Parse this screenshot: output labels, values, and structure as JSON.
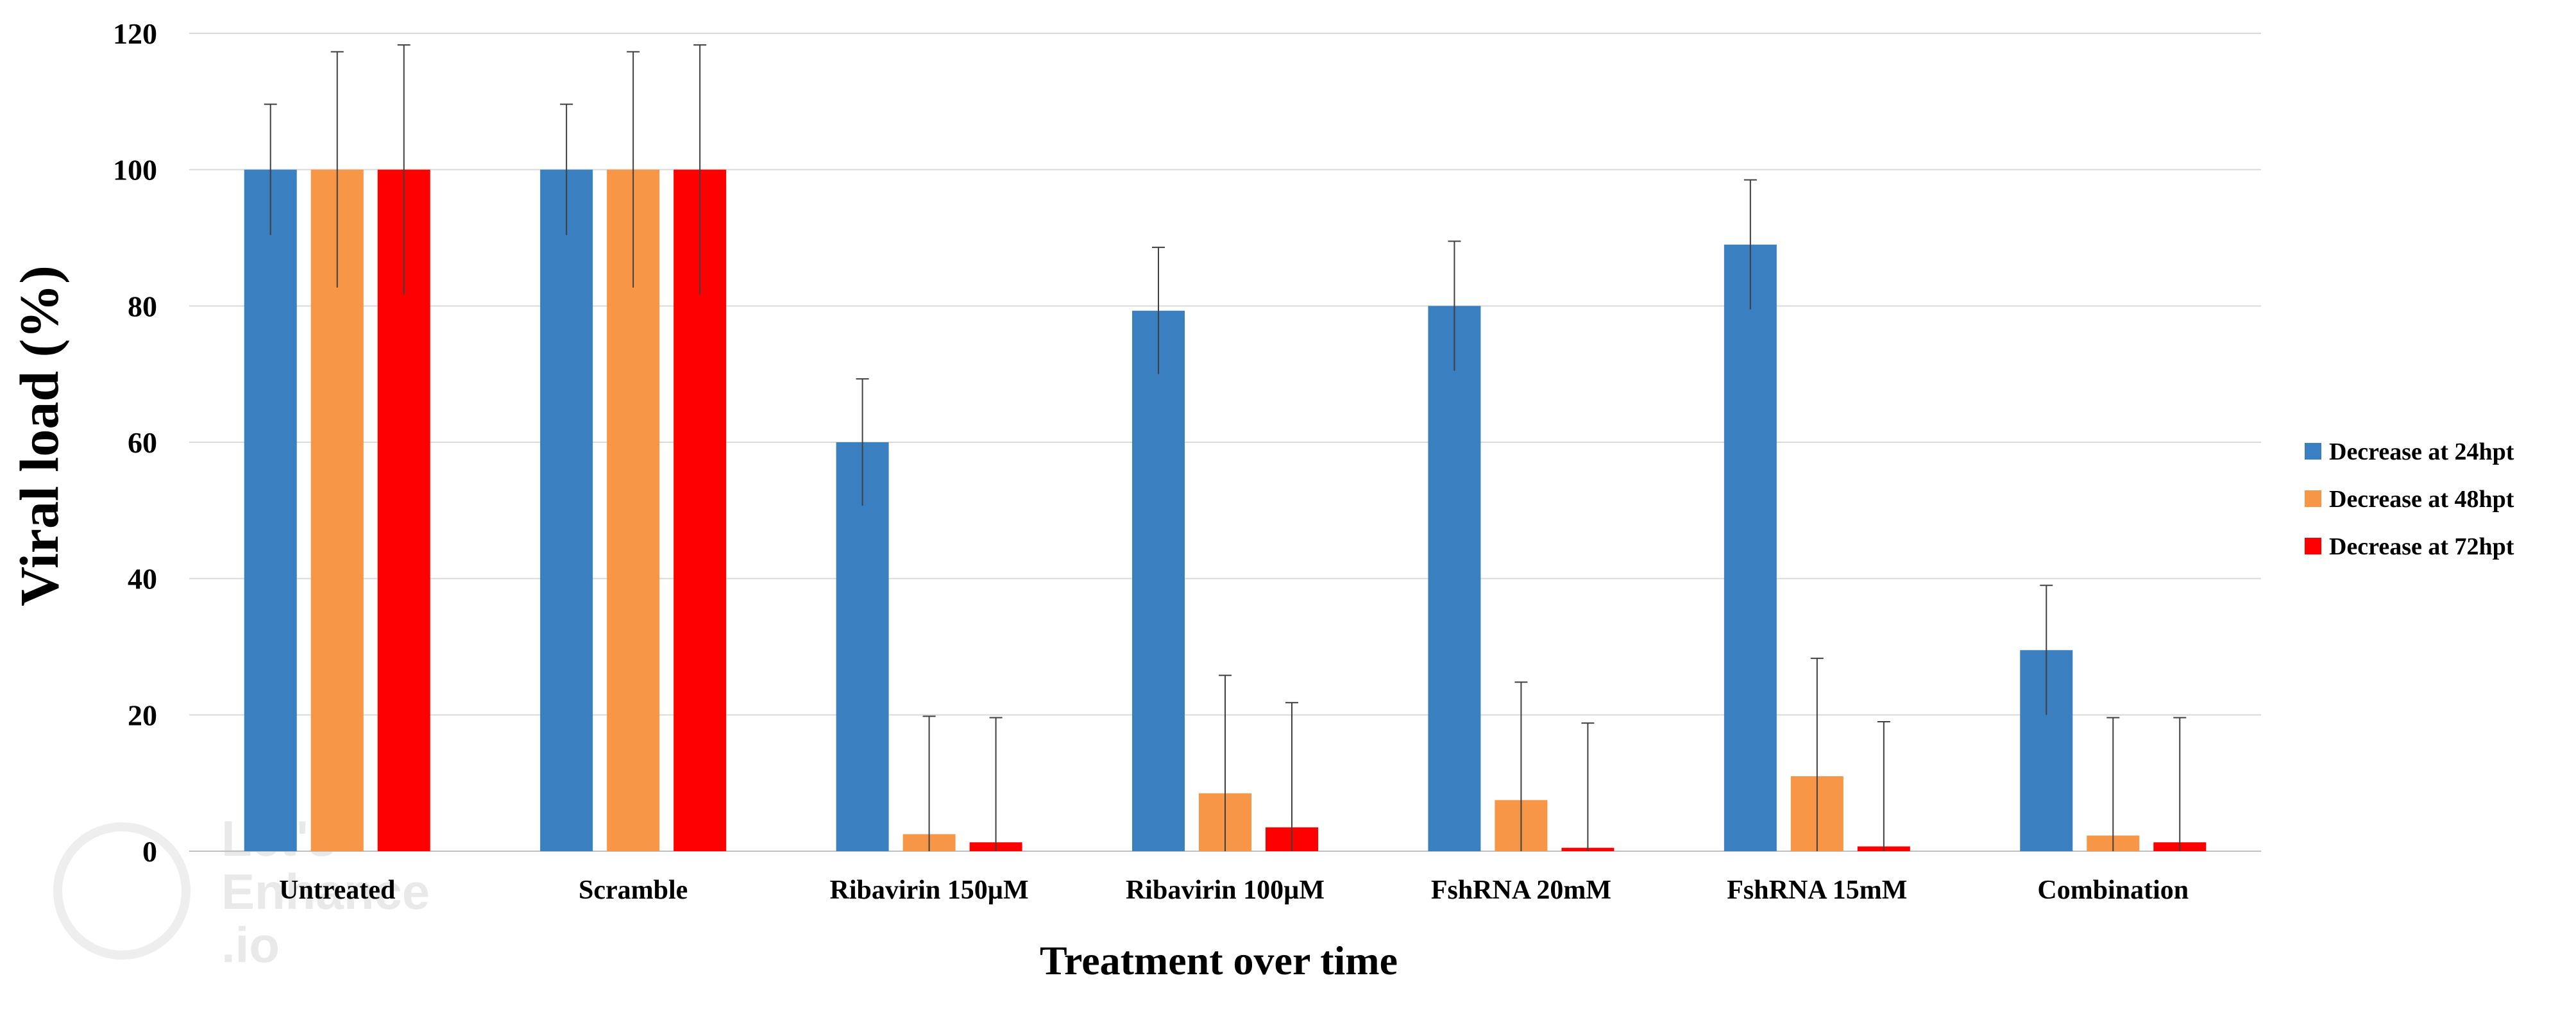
{
  "chart_data": {
    "type": "bar",
    "title": "",
    "xlabel": "Treatment over time",
    "ylabel": "Viral load (%)",
    "ylim": [
      0,
      120
    ],
    "yticks": [
      0,
      20,
      40,
      60,
      80,
      100,
      120
    ],
    "grid": true,
    "legend_position": "right",
    "categories": [
      "Untreated",
      "Scramble",
      "Ribavirin 150µM",
      "Ribavirin 100µM",
      "FshRNA 20mM",
      "FshRNA 15mM",
      "Combination"
    ],
    "series": [
      {
        "name": "Decrease at 24hpt",
        "color": "#3a7fbf",
        "values": [
          100,
          100,
          60,
          79.3,
          80,
          89,
          29.5
        ],
        "errors": [
          9.6,
          9.6,
          9.3,
          9.3,
          9.5,
          9.5,
          9.5
        ]
      },
      {
        "name": "Decrease at 48hpt",
        "color": "#f79646",
        "values": [
          100,
          100,
          2.5,
          8.5,
          7.5,
          11,
          2.3
        ],
        "errors": [
          17.3,
          17.3,
          17.3,
          17.3,
          17.3,
          17.3,
          17.3
        ]
      },
      {
        "name": "Decrease at 72hpt",
        "color": "#ff0000",
        "values": [
          100,
          100,
          1.3,
          3.5,
          0.5,
          0.7,
          1.3
        ],
        "errors": [
          18.3,
          18.3,
          18.3,
          18.3,
          18.3,
          18.3,
          18.3
        ]
      }
    ]
  },
  "watermark": {
    "lines": [
      "Let's",
      "Enhance",
      ".io"
    ]
  }
}
